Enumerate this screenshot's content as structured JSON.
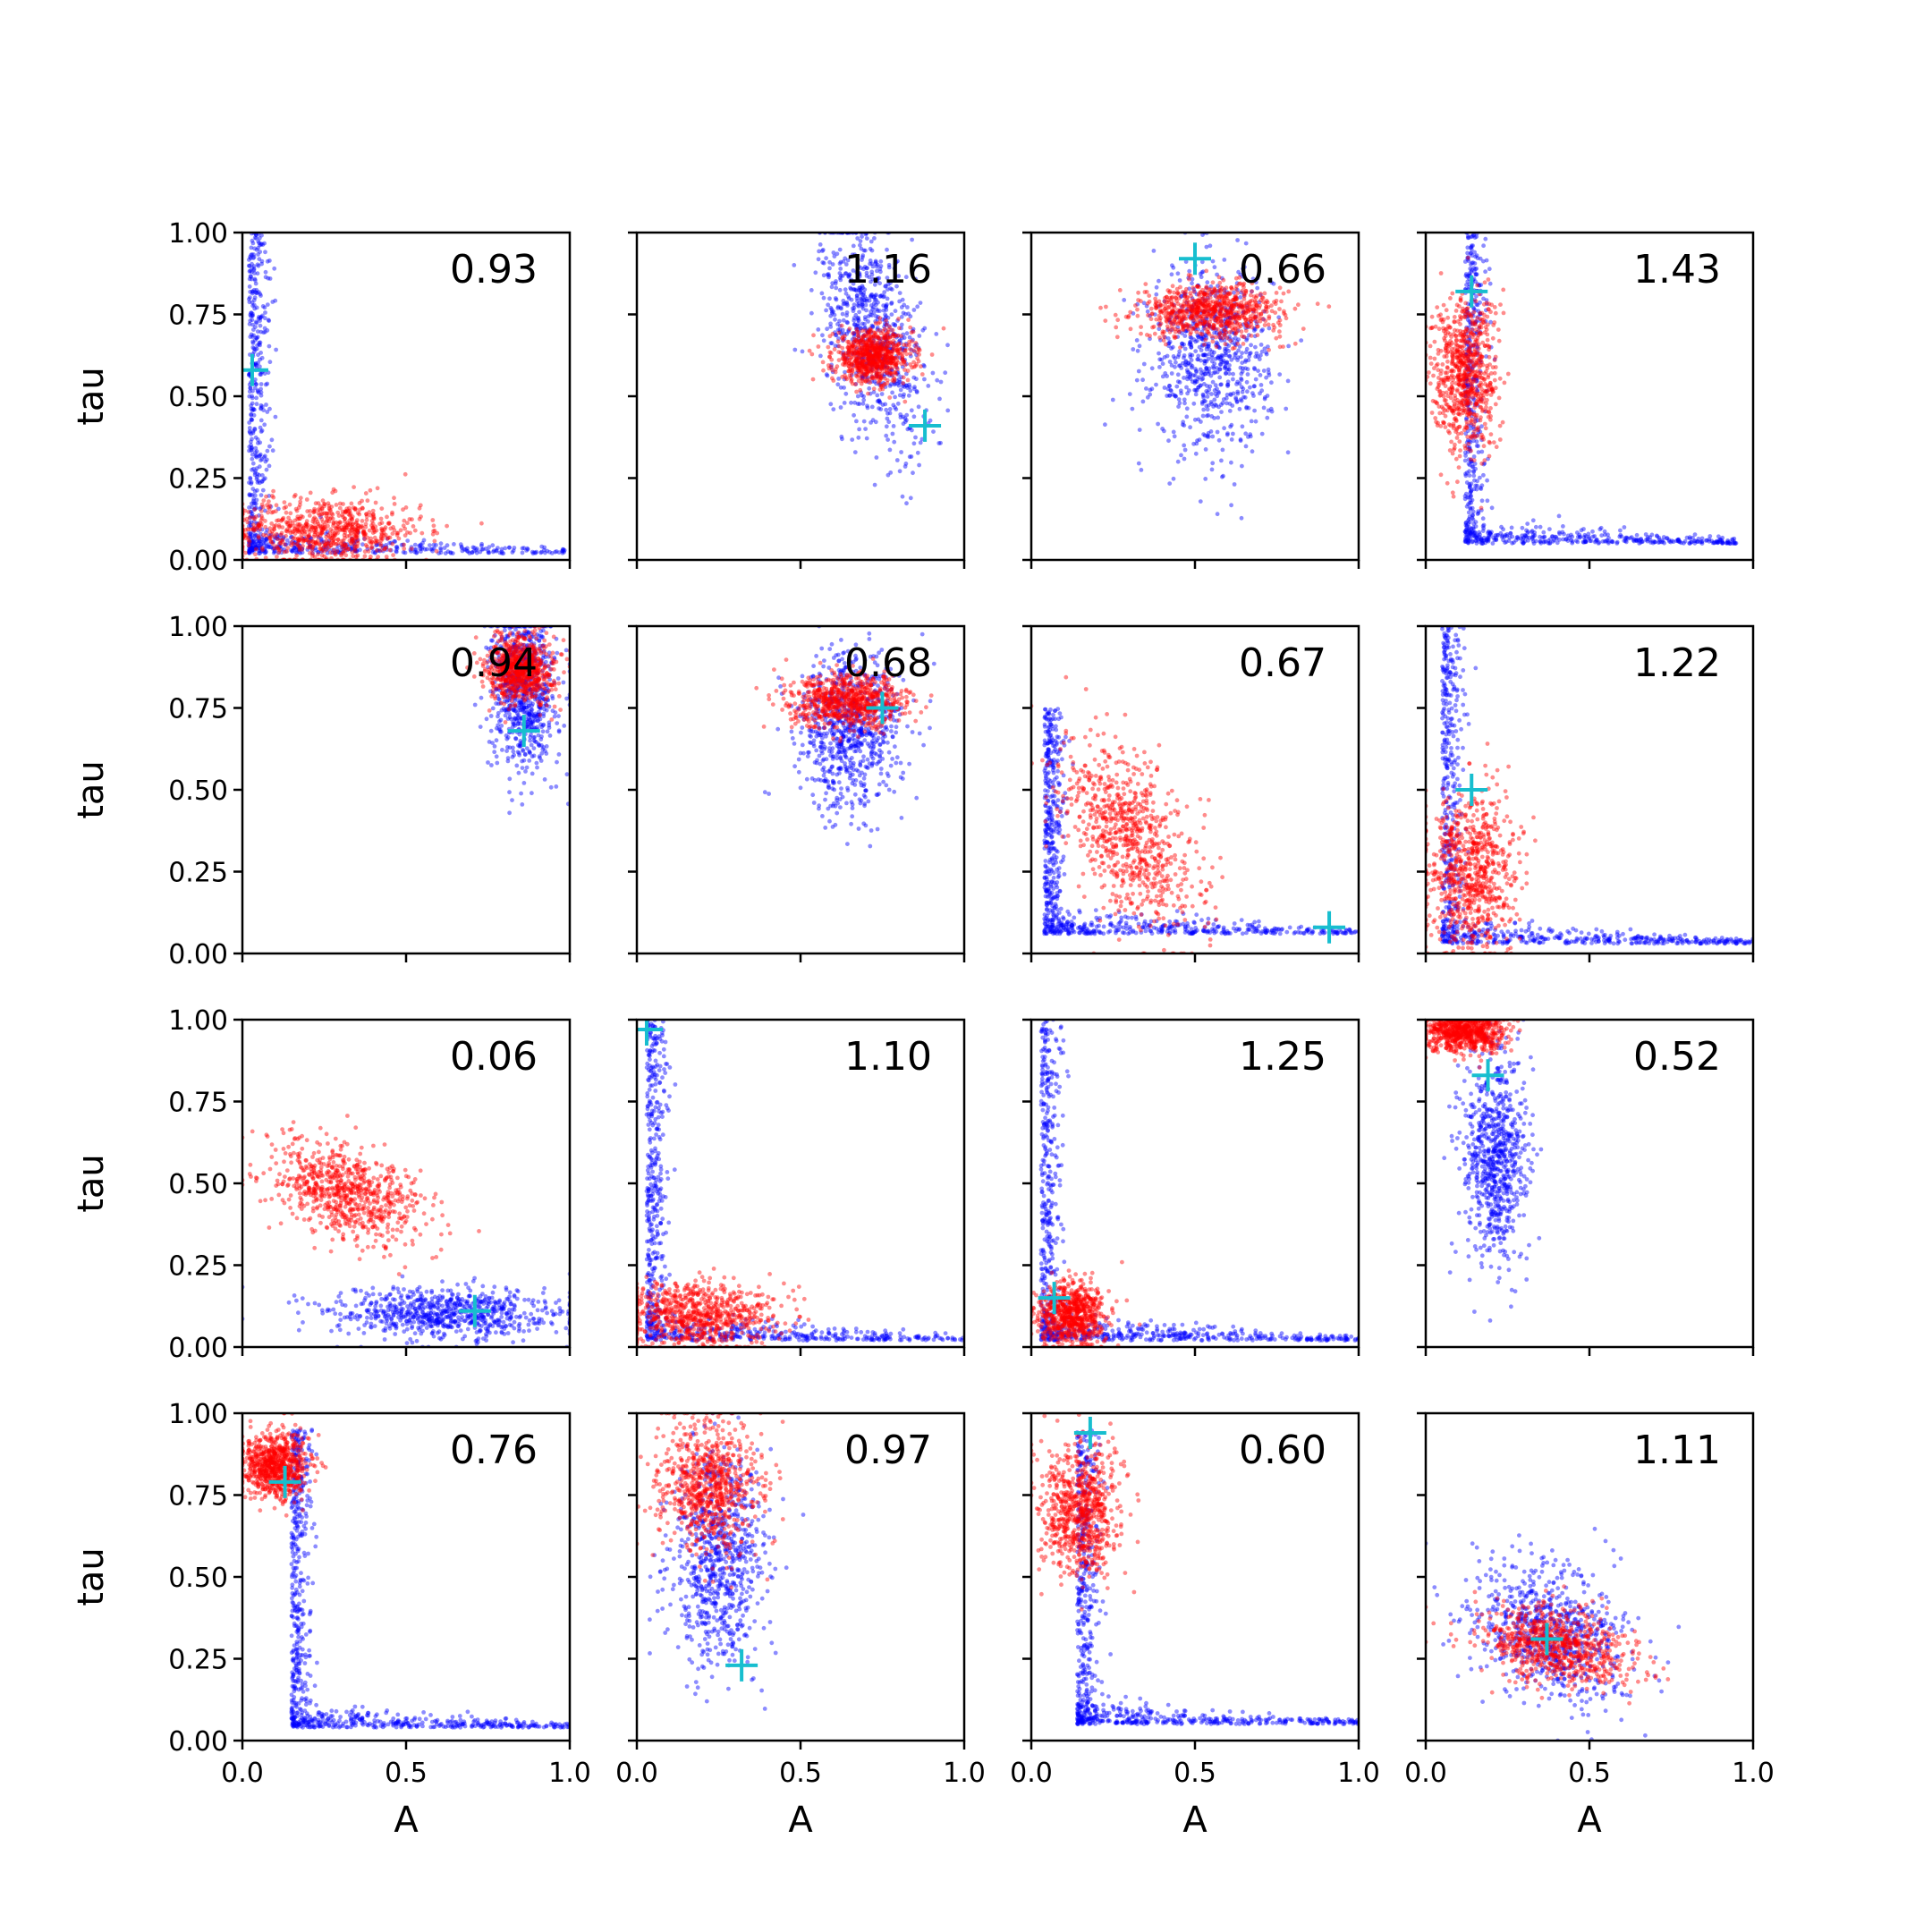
{
  "chart_data": {
    "type": "scatter",
    "layout": "4x4 grid of scatter panels",
    "xlabel": "A",
    "ylabel": "tau",
    "xlim": [
      0.0,
      1.0
    ],
    "ylim": [
      0.0,
      1.0
    ],
    "x_tick_labels": [
      "0.0",
      "0.5",
      "1.0"
    ],
    "y_tick_labels": [
      "0.00",
      "0.25",
      "0.50",
      "0.75",
      "1.00"
    ],
    "grid": false,
    "legend": "none",
    "colors": {
      "blue_series": "#0000ff",
      "red_series": "#ff0000",
      "true_marker": "#17becf"
    },
    "panels": [
      {
        "value_label": "0.93",
        "true_point": [
          0.03,
          0.58
        ],
        "blue": {
          "shape": "L",
          "x0": 0.02,
          "y0": 0.02,
          "vertical_top": 1.0,
          "horizontal_right": 1.0
        },
        "red": {
          "center": [
            0.25,
            0.09
          ],
          "spread": [
            0.15,
            0.05
          ]
        }
      },
      {
        "value_label": "1.16",
        "true_point": [
          0.88,
          0.41
        ],
        "blue": {
          "center": [
            0.72,
            0.7
          ],
          "spread": [
            0.08,
            0.16
          ],
          "tilt": -0.5
        },
        "red": {
          "center": [
            0.72,
            0.62
          ],
          "spread": [
            0.06,
            0.04
          ]
        }
      },
      {
        "value_label": "0.66",
        "true_point": [
          0.5,
          0.92
        ],
        "blue": {
          "center": [
            0.55,
            0.62
          ],
          "spread": [
            0.09,
            0.14
          ]
        },
        "red": {
          "center": [
            0.55,
            0.76
          ],
          "spread": [
            0.11,
            0.04
          ]
        }
      },
      {
        "value_label": "1.43",
        "true_point": [
          0.14,
          0.82
        ],
        "blue": {
          "shape": "L",
          "x0": 0.12,
          "y0": 0.05,
          "vertical_top": 1.0,
          "horizontal_right": 0.95
        },
        "red": {
          "center": [
            0.12,
            0.57
          ],
          "spread": [
            0.05,
            0.12
          ]
        }
      },
      {
        "value_label": "0.94",
        "true_point": [
          0.86,
          0.68
        ],
        "blue": {
          "center": [
            0.86,
            0.8
          ],
          "spread": [
            0.05,
            0.12
          ]
        },
        "red": {
          "center": [
            0.85,
            0.87
          ],
          "spread": [
            0.05,
            0.05
          ]
        }
      },
      {
        "value_label": "0.68",
        "true_point": [
          0.75,
          0.75
        ],
        "blue": {
          "center": [
            0.65,
            0.68
          ],
          "spread": [
            0.08,
            0.12
          ]
        },
        "red": {
          "center": [
            0.65,
            0.77
          ],
          "spread": [
            0.09,
            0.04
          ]
        }
      },
      {
        "value_label": "0.67",
        "true_point": [
          0.91,
          0.08
        ],
        "blue": {
          "shape": "L",
          "x0": 0.04,
          "y0": 0.06,
          "vertical_top": 0.75,
          "horizontal_right": 1.0
        },
        "red": {
          "center": [
            0.3,
            0.36
          ],
          "spread": [
            0.1,
            0.12
          ],
          "tilt": -0.6
        }
      },
      {
        "value_label": "1.22",
        "true_point": [
          0.14,
          0.5
        ],
        "blue": {
          "shape": "L",
          "x0": 0.05,
          "y0": 0.03,
          "vertical_top": 1.0,
          "horizontal_right": 1.0
        },
        "red": {
          "center": [
            0.14,
            0.25
          ],
          "spread": [
            0.07,
            0.12
          ]
        }
      },
      {
        "value_label": "0.06",
        "true_point": [
          0.71,
          0.11
        ],
        "blue": {
          "center": [
            0.62,
            0.1
          ],
          "spread": [
            0.18,
            0.04
          ]
        },
        "red": {
          "center": [
            0.32,
            0.47
          ],
          "spread": [
            0.12,
            0.07
          ],
          "tilt": -0.4
        }
      },
      {
        "value_label": "1.10",
        "true_point": [
          0.03,
          0.97
        ],
        "blue": {
          "shape": "L",
          "x0": 0.03,
          "y0": 0.02,
          "vertical_top": 1.0,
          "horizontal_right": 1.0
        },
        "red": {
          "center": [
            0.18,
            0.1
          ],
          "spread": [
            0.12,
            0.05
          ]
        }
      },
      {
        "value_label": "1.25",
        "true_point": [
          0.07,
          0.15
        ],
        "blue": {
          "shape": "L",
          "x0": 0.03,
          "y0": 0.02,
          "vertical_top": 1.0,
          "horizontal_right": 1.0
        },
        "red": {
          "center": [
            0.12,
            0.1
          ],
          "spread": [
            0.05,
            0.05
          ]
        }
      },
      {
        "value_label": "0.52",
        "true_point": [
          0.19,
          0.83
        ],
        "blue": {
          "center": [
            0.21,
            0.58
          ],
          "spread": [
            0.05,
            0.16
          ]
        },
        "red": {
          "center": [
            0.12,
            0.96
          ],
          "spread": [
            0.06,
            0.03
          ]
        }
      },
      {
        "value_label": "0.76",
        "true_point": [
          0.13,
          0.79
        ],
        "blue": {
          "shape": "L",
          "x0": 0.15,
          "y0": 0.04,
          "vertical_top": 0.95,
          "horizontal_right": 1.0
        },
        "red": {
          "center": [
            0.1,
            0.84
          ],
          "spread": [
            0.05,
            0.05
          ]
        }
      },
      {
        "value_label": "0.97",
        "true_point": [
          0.32,
          0.23
        ],
        "blue": {
          "center": [
            0.25,
            0.55
          ],
          "spread": [
            0.07,
            0.16
          ]
        },
        "red": {
          "center": [
            0.22,
            0.78
          ],
          "spread": [
            0.08,
            0.1
          ]
        }
      },
      {
        "value_label": "0.60",
        "true_point": [
          0.18,
          0.94
        ],
        "blue": {
          "shape": "L",
          "x0": 0.14,
          "y0": 0.05,
          "vertical_top": 0.95,
          "horizontal_right": 1.0
        },
        "red": {
          "center": [
            0.15,
            0.7
          ],
          "spread": [
            0.06,
            0.1
          ]
        }
      },
      {
        "value_label": "1.11",
        "true_point": [
          0.37,
          0.31
        ],
        "blue": {
          "center": [
            0.38,
            0.33
          ],
          "spread": [
            0.12,
            0.1
          ],
          "tilt": -0.3
        },
        "red": {
          "center": [
            0.4,
            0.29
          ],
          "spread": [
            0.11,
            0.06
          ],
          "tilt": -0.3
        }
      }
    ]
  }
}
